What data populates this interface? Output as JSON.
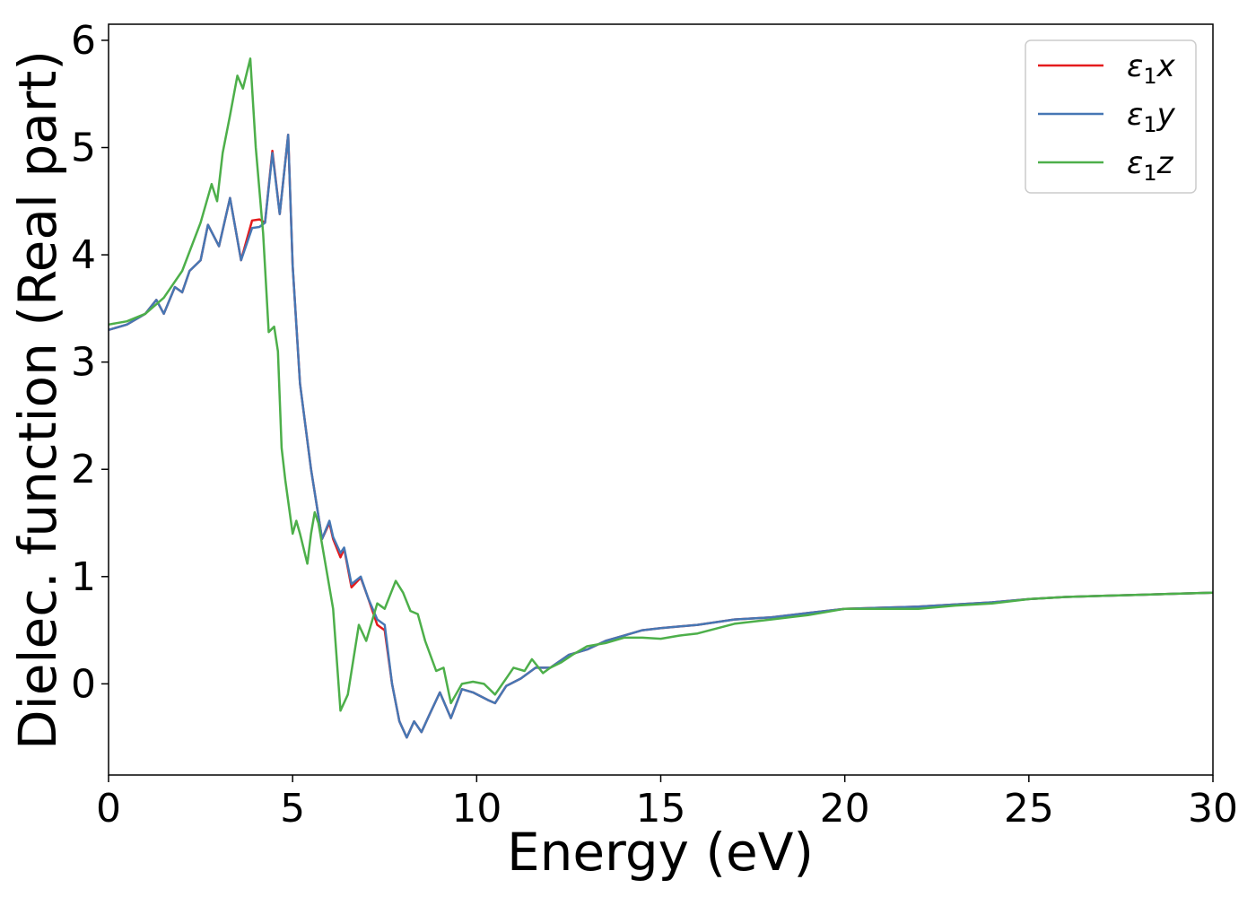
{
  "chart_data": {
    "type": "line",
    "xlabel": "Energy (eV)",
    "ylabel": "Dielec. function (Real part)",
    "xlim": [
      0,
      30
    ],
    "ylim": [
      -0.85,
      6.15
    ],
    "xticks": [
      0,
      5,
      10,
      15,
      20,
      25,
      30
    ],
    "yticks": [
      0,
      1,
      2,
      3,
      4,
      5,
      6
    ],
    "grid": false,
    "legend": "top-right",
    "series": [
      {
        "name": "ε₁x",
        "legend_base": "ε",
        "legend_sub": "1",
        "legend_tail": "x",
        "color": "#e41a1c",
        "x": [
          0,
          0.5,
          1.0,
          1.3,
          1.5,
          1.8,
          2.0,
          2.2,
          2.5,
          2.7,
          3.0,
          3.3,
          3.6,
          3.9,
          4.1,
          4.25,
          4.45,
          4.65,
          4.88,
          5.0,
          5.2,
          5.5,
          5.8,
          6.0,
          6.1,
          6.3,
          6.4,
          6.6,
          6.85,
          7.05,
          7.3,
          7.5,
          7.7,
          7.9,
          8.1,
          8.3,
          8.5,
          8.7,
          9.0,
          9.3,
          9.6,
          9.9,
          10.3,
          10.5,
          10.8,
          11.2,
          11.6,
          12.0,
          12.5,
          13.0,
          13.5,
          14.0,
          14.5,
          15,
          16,
          17,
          18,
          19,
          20,
          21,
          22,
          23,
          24,
          25,
          26,
          27,
          28,
          29,
          30
        ],
        "y": [
          3.3,
          3.35,
          3.45,
          3.58,
          3.45,
          3.7,
          3.65,
          3.85,
          3.95,
          4.28,
          4.08,
          4.53,
          3.95,
          4.32,
          4.33,
          4.3,
          4.97,
          4.38,
          5.12,
          3.9,
          2.8,
          2.0,
          1.35,
          1.5,
          1.35,
          1.18,
          1.26,
          0.9,
          0.99,
          0.8,
          0.55,
          0.5,
          0.0,
          -0.35,
          -0.5,
          -0.35,
          -0.45,
          -0.3,
          -0.08,
          -0.32,
          -0.05,
          -0.08,
          -0.15,
          -0.18,
          -0.02,
          0.05,
          0.15,
          0.15,
          0.27,
          0.32,
          0.4,
          0.45,
          0.5,
          0.52,
          0.55,
          0.6,
          0.62,
          0.66,
          0.7,
          0.71,
          0.72,
          0.74,
          0.76,
          0.79,
          0.81,
          0.82,
          0.83,
          0.84,
          0.85
        ]
      },
      {
        "name": "ε₁y",
        "legend_base": "ε",
        "legend_sub": "1",
        "legend_tail": "y",
        "color": "#4677b4",
        "x": [
          0,
          0.5,
          1.0,
          1.3,
          1.5,
          1.8,
          2.0,
          2.2,
          2.5,
          2.7,
          3.0,
          3.3,
          3.6,
          3.9,
          4.1,
          4.25,
          4.45,
          4.65,
          4.88,
          5.0,
          5.2,
          5.5,
          5.8,
          6.0,
          6.1,
          6.3,
          6.4,
          6.6,
          6.85,
          7.05,
          7.3,
          7.5,
          7.7,
          7.9,
          8.1,
          8.3,
          8.5,
          8.7,
          9.0,
          9.3,
          9.6,
          9.9,
          10.3,
          10.5,
          10.8,
          11.2,
          11.6,
          12.0,
          12.5,
          13.0,
          13.5,
          14.0,
          14.5,
          15,
          16,
          17,
          18,
          19,
          20,
          21,
          22,
          23,
          24,
          25,
          26,
          27,
          28,
          29,
          30
        ],
        "y": [
          3.3,
          3.35,
          3.45,
          3.58,
          3.45,
          3.7,
          3.65,
          3.85,
          3.95,
          4.28,
          4.08,
          4.53,
          3.95,
          4.25,
          4.26,
          4.3,
          4.95,
          4.38,
          5.12,
          3.9,
          2.8,
          2.0,
          1.35,
          1.52,
          1.37,
          1.22,
          1.27,
          0.93,
          1.0,
          0.8,
          0.6,
          0.55,
          0.0,
          -0.35,
          -0.5,
          -0.35,
          -0.45,
          -0.3,
          -0.08,
          -0.32,
          -0.05,
          -0.08,
          -0.15,
          -0.18,
          -0.02,
          0.05,
          0.15,
          0.15,
          0.27,
          0.32,
          0.4,
          0.45,
          0.5,
          0.52,
          0.55,
          0.6,
          0.62,
          0.66,
          0.7,
          0.71,
          0.72,
          0.74,
          0.76,
          0.79,
          0.81,
          0.82,
          0.83,
          0.84,
          0.85
        ]
      },
      {
        "name": "ε₁z",
        "legend_base": "ε",
        "legend_sub": "1",
        "legend_tail": "z",
        "color": "#4daf4a",
        "x": [
          0,
          0.5,
          1.0,
          1.5,
          2.0,
          2.5,
          2.8,
          2.95,
          3.1,
          3.3,
          3.5,
          3.65,
          3.85,
          4.0,
          4.2,
          4.35,
          4.5,
          4.6,
          4.7,
          4.8,
          5.0,
          5.1,
          5.2,
          5.4,
          5.5,
          5.6,
          5.7,
          5.9,
          6.1,
          6.3,
          6.5,
          6.8,
          7.0,
          7.3,
          7.5,
          7.8,
          8.0,
          8.2,
          8.4,
          8.6,
          8.9,
          9.1,
          9.3,
          9.6,
          9.9,
          10.2,
          10.5,
          10.8,
          11.0,
          11.3,
          11.5,
          11.8,
          12.0,
          12.3,
          12.6,
          13.0,
          13.5,
          14.0,
          14.5,
          15,
          15.5,
          16,
          17,
          18,
          19,
          20,
          21,
          22,
          23,
          24,
          25,
          26,
          27,
          28,
          29,
          30
        ],
        "y": [
          3.35,
          3.38,
          3.45,
          3.6,
          3.85,
          4.3,
          4.66,
          4.5,
          4.95,
          5.3,
          5.67,
          5.55,
          5.83,
          5.0,
          4.2,
          3.28,
          3.33,
          3.1,
          2.2,
          1.9,
          1.4,
          1.52,
          1.4,
          1.12,
          1.4,
          1.6,
          1.5,
          1.1,
          0.7,
          -0.25,
          -0.1,
          0.55,
          0.4,
          0.75,
          0.7,
          0.96,
          0.85,
          0.68,
          0.65,
          0.4,
          0.12,
          0.15,
          -0.18,
          0.0,
          0.02,
          0.0,
          -0.1,
          0.05,
          0.15,
          0.12,
          0.23,
          0.1,
          0.15,
          0.2,
          0.27,
          0.35,
          0.38,
          0.43,
          0.43,
          0.42,
          0.45,
          0.47,
          0.56,
          0.6,
          0.64,
          0.7,
          0.7,
          0.7,
          0.73,
          0.75,
          0.79,
          0.81,
          0.82,
          0.83,
          0.84,
          0.85
        ]
      }
    ]
  }
}
